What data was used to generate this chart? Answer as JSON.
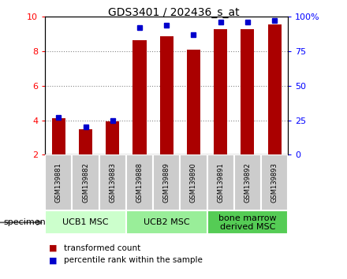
{
  "title": "GDS3401 / 202436_s_at",
  "samples": [
    "GSM139881",
    "GSM139882",
    "GSM139883",
    "GSM139888",
    "GSM139889",
    "GSM139890",
    "GSM139891",
    "GSM139892",
    "GSM139893"
  ],
  "transformed_count": [
    4.1,
    3.5,
    3.95,
    8.65,
    8.85,
    8.1,
    9.3,
    9.3,
    9.55
  ],
  "percentile_rank": [
    27,
    20,
    25,
    92,
    94,
    87,
    96,
    96,
    97
  ],
  "ylim_left": [
    2,
    10
  ],
  "ylim_right": [
    0,
    100
  ],
  "yticks_left": [
    2,
    4,
    6,
    8,
    10
  ],
  "yticks_right": [
    0,
    25,
    50,
    75,
    100
  ],
  "bar_color": "#AA0000",
  "dot_color": "#0000CC",
  "groups": [
    {
      "label": "UCB1 MSC",
      "indices": [
        0,
        1,
        2
      ],
      "color": "#CCFFCC"
    },
    {
      "label": "UCB2 MSC",
      "indices": [
        3,
        4,
        5
      ],
      "color": "#99EE99"
    },
    {
      "label": "bone marrow\nderived MSC",
      "indices": [
        6,
        7,
        8
      ],
      "color": "#55CC55"
    }
  ],
  "legend_bar_label": "transformed count",
  "legend_dot_label": "percentile rank within the sample",
  "specimen_label": "specimen",
  "sample_box_color": "#CCCCCC",
  "bar_width": 0.5,
  "dot_size": 4,
  "grid_color": "#888888",
  "grid_lines": [
    4,
    6,
    8
  ],
  "left_color": "red",
  "right_color": "blue",
  "title_fontsize": 10,
  "tick_fontsize": 8,
  "sample_fontsize": 6,
  "group_fontsize": 8
}
